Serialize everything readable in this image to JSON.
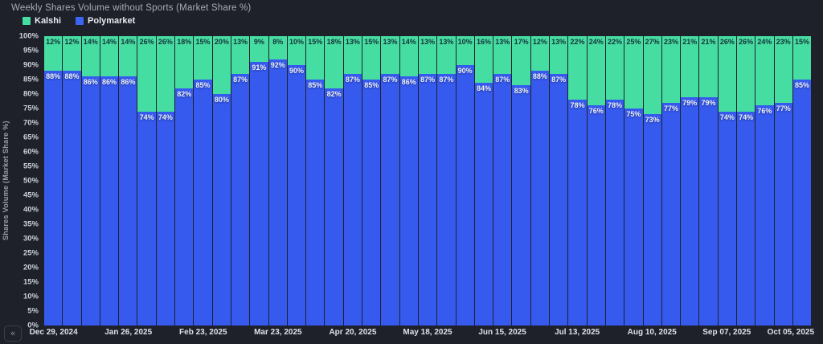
{
  "title": "Weekly Shares Volume without Sports (Market Share %)",
  "legend": {
    "items": [
      {
        "label": "Kalshi",
        "color": "#45dda2"
      },
      {
        "label": "Polymarket",
        "color": "#3b66f5"
      }
    ]
  },
  "collapse_button_label": "«",
  "chart_data": {
    "type": "bar",
    "stacked": true,
    "title": "Weekly Shares Volume without Sports (Market Share %)",
    "ylabel": "Shares Volume (Market Share %)",
    "ylim": [
      0,
      100
    ],
    "grid": false,
    "legend_position": "top-left",
    "y_tick_labels": [
      "100%",
      "95%",
      "90%",
      "85%",
      "80%",
      "75%",
      "70%",
      "65%",
      "60%",
      "55%",
      "50%",
      "45%",
      "40%",
      "35%",
      "30%",
      "25%",
      "20%",
      "15%",
      "10%",
      "5%",
      "0%"
    ],
    "x_tick_labels": [
      "Dec 29, 2024",
      "Jan 26, 2025",
      "Feb 23, 2025",
      "Mar 23, 2025",
      "Apr 20, 2025",
      "May 18, 2025",
      "Jun 15, 2025",
      "Jul 13, 2025",
      "Aug 10, 2025",
      "Sep 07, 2025",
      "Oct 05, 2025"
    ],
    "x_tick_every": 4,
    "bar_value_suffix": "%",
    "series": [
      {
        "name": "Kalshi",
        "color": "#45dda2",
        "label_color": "#173238",
        "values": [
          12,
          12,
          14,
          14,
          14,
          26,
          26,
          18,
          15,
          20,
          13,
          9,
          8,
          10,
          15,
          18,
          13,
          15,
          13,
          14,
          13,
          13,
          10,
          16,
          13,
          17,
          12,
          13,
          22,
          24,
          22,
          25,
          27,
          23,
          21,
          21,
          26,
          26,
          24,
          23,
          15
        ]
      },
      {
        "name": "Polymarket",
        "color": "#3659ee",
        "label_color": "#f0f3f8",
        "values": [
          88,
          88,
          86,
          86,
          86,
          74,
          74,
          82,
          85,
          80,
          87,
          91,
          92,
          90,
          85,
          82,
          87,
          85,
          87,
          86,
          87,
          87,
          90,
          84,
          87,
          83,
          88,
          87,
          78,
          76,
          78,
          75,
          73,
          77,
          79,
          79,
          74,
          74,
          76,
          77,
          85
        ]
      }
    ]
  }
}
